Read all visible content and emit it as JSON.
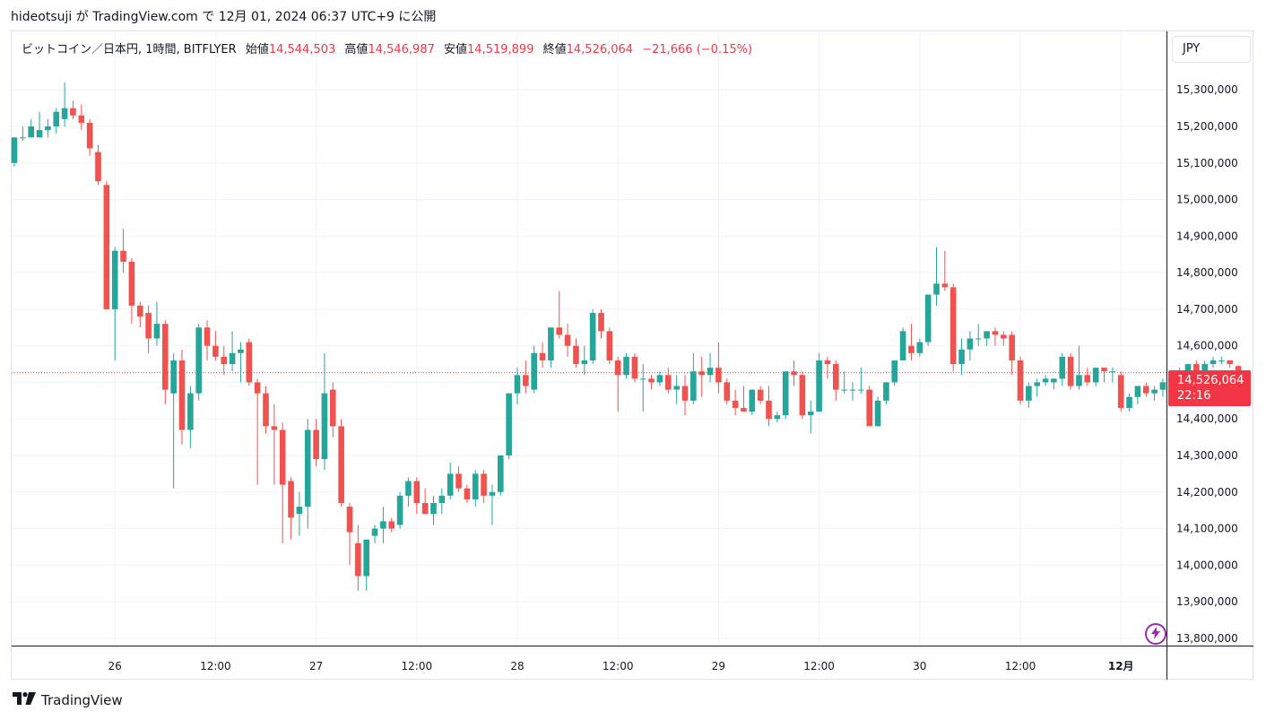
{
  "caption": "hideotsuji が TradingView.com で 12月 01, 2024 06:37 UTC+9 に公開",
  "legend": {
    "symbol": "ビットコイン／日本円, 1時間, BITFLYER",
    "open_label": "始値",
    "open": "14,544,503",
    "high_label": "高値",
    "high": "14,546,987",
    "low_label": "安値",
    "low": "14,519,899",
    "close_label": "終値",
    "close": "14,526,064",
    "change": "−21,666 (−0.15%)"
  },
  "currency": "JPY",
  "last_price": {
    "price": "14,526,064",
    "countdown": "22:16"
  },
  "footer_brand": "TradingView",
  "colors": {
    "up": "#26a69a",
    "down": "#ef5350",
    "grid": "#f0f3fa",
    "last_line": "#f23645",
    "bolt": "#9c27b0"
  },
  "icons": {
    "bolt": "lightning-bolt-icon",
    "logo": "tradingview-logo-icon"
  },
  "chart_data": {
    "type": "candlestick",
    "interval": "1時間",
    "y_ticks": [
      13800000,
      13900000,
      14000000,
      14100000,
      14200000,
      14300000,
      14400000,
      14500000,
      14600000,
      14700000,
      14800000,
      14900000,
      15000000,
      15100000,
      15200000,
      15300000
    ],
    "y_tick_labels": [
      "13,800,000",
      "13,900,000",
      "14,000,000",
      "14,100,000",
      "14,200,000",
      "14,300,000",
      "14,400,000",
      "14,500,000",
      "14,600,000",
      "14,700,000",
      "14,800,000",
      "14,900,000",
      "15,000,000",
      "15,100,000",
      "15,200,000",
      "15,300,000"
    ],
    "ylim": [
      13780000,
      15460000
    ],
    "x_labels": [
      {
        "label": "26",
        "index": 12
      },
      {
        "label": "12:00",
        "index": 24
      },
      {
        "label": "27",
        "index": 36
      },
      {
        "label": "12:00",
        "index": 48
      },
      {
        "label": "28",
        "index": 60
      },
      {
        "label": "12:00",
        "index": 72
      },
      {
        "label": "29",
        "index": 84
      },
      {
        "label": "12:00",
        "index": 96
      },
      {
        "label": "30",
        "index": 108
      },
      {
        "label": "12:00",
        "index": 120
      },
      {
        "label": "12月",
        "index": 132
      }
    ],
    "grid": true,
    "candles": [
      [
        15100000,
        15170000,
        15090000,
        15170000
      ],
      [
        15170000,
        15200000,
        15160000,
        15170000
      ],
      [
        15170000,
        15220000,
        15170000,
        15200000
      ],
      [
        15170000,
        15240000,
        15170000,
        15190000
      ],
      [
        15190000,
        15220000,
        15170000,
        15200000
      ],
      [
        15200000,
        15250000,
        15180000,
        15240000
      ],
      [
        15220000,
        15320000,
        15200000,
        15250000
      ],
      [
        15250000,
        15270000,
        15220000,
        15230000
      ],
      [
        15230000,
        15260000,
        15190000,
        15210000
      ],
      [
        15210000,
        15220000,
        15120000,
        15140000
      ],
      [
        15130000,
        15150000,
        15040000,
        15050000
      ],
      [
        15040000,
        15050000,
        14700000,
        14700000
      ],
      [
        14700000,
        14870000,
        14560000,
        14860000
      ],
      [
        14860000,
        14920000,
        14800000,
        14830000
      ],
      [
        14830000,
        14840000,
        14660000,
        14710000
      ],
      [
        14710000,
        14720000,
        14650000,
        14680000
      ],
      [
        14690000,
        14710000,
        14580000,
        14620000
      ],
      [
        14620000,
        14720000,
        14600000,
        14660000
      ],
      [
        14660000,
        14670000,
        14440000,
        14480000
      ],
      [
        14470000,
        14580000,
        14210000,
        14560000
      ],
      [
        14560000,
        14590000,
        14330000,
        14370000
      ],
      [
        14370000,
        14490000,
        14320000,
        14470000
      ],
      [
        14470000,
        14660000,
        14450000,
        14650000
      ],
      [
        14650000,
        14670000,
        14560000,
        14600000
      ],
      [
        14600000,
        14640000,
        14560000,
        14570000
      ],
      [
        14570000,
        14600000,
        14520000,
        14550000
      ],
      [
        14550000,
        14640000,
        14530000,
        14580000
      ],
      [
        14580000,
        14610000,
        14500000,
        14590000
      ],
      [
        14610000,
        14620000,
        14490000,
        14500000
      ],
      [
        14500000,
        14510000,
        14220000,
        14470000
      ],
      [
        14470000,
        14490000,
        14360000,
        14380000
      ],
      [
        14380000,
        14440000,
        14220000,
        14370000
      ],
      [
        14370000,
        14390000,
        14060000,
        14220000
      ],
      [
        14230000,
        14240000,
        14070000,
        14130000
      ],
      [
        14140000,
        14200000,
        14080000,
        14160000
      ],
      [
        14160000,
        14400000,
        14100000,
        14370000
      ],
      [
        14370000,
        14400000,
        14270000,
        14290000
      ],
      [
        14290000,
        14580000,
        14260000,
        14470000
      ],
      [
        14480000,
        14500000,
        14350000,
        14380000
      ],
      [
        14380000,
        14400000,
        14160000,
        14170000
      ],
      [
        14160000,
        14170000,
        14000000,
        14090000
      ],
      [
        14060000,
        14110000,
        13930000,
        13970000
      ],
      [
        13970000,
        14070000,
        13930000,
        14070000
      ],
      [
        14080000,
        14110000,
        14060000,
        14100000
      ],
      [
        14100000,
        14160000,
        14060000,
        14120000
      ],
      [
        14120000,
        14130000,
        14090000,
        14100000
      ],
      [
        14110000,
        14200000,
        14100000,
        14190000
      ],
      [
        14190000,
        14240000,
        14160000,
        14230000
      ],
      [
        14230000,
        14240000,
        14140000,
        14170000
      ],
      [
        14170000,
        14210000,
        14140000,
        14140000
      ],
      [
        14140000,
        14190000,
        14110000,
        14170000
      ],
      [
        14170000,
        14210000,
        14140000,
        14190000
      ],
      [
        14190000,
        14280000,
        14180000,
        14250000
      ],
      [
        14250000,
        14270000,
        14200000,
        14210000
      ],
      [
        14210000,
        14220000,
        14170000,
        14180000
      ],
      [
        14180000,
        14260000,
        14160000,
        14250000
      ],
      [
        14250000,
        14260000,
        14170000,
        14190000
      ],
      [
        14190000,
        14220000,
        14110000,
        14200000
      ],
      [
        14200000,
        14300000,
        14190000,
        14300000
      ],
      [
        14300000,
        14470000,
        14290000,
        14470000
      ],
      [
        14470000,
        14540000,
        14440000,
        14520000
      ],
      [
        14520000,
        14560000,
        14470000,
        14490000
      ],
      [
        14480000,
        14600000,
        14470000,
        14580000
      ],
      [
        14580000,
        14610000,
        14540000,
        14560000
      ],
      [
        14560000,
        14650000,
        14540000,
        14650000
      ],
      [
        14650000,
        14750000,
        14620000,
        14630000
      ],
      [
        14630000,
        14660000,
        14570000,
        14600000
      ],
      [
        14600000,
        14620000,
        14540000,
        14550000
      ],
      [
        14550000,
        14600000,
        14520000,
        14560000
      ],
      [
        14560000,
        14700000,
        14550000,
        14690000
      ],
      [
        14690000,
        14700000,
        14620000,
        14640000
      ],
      [
        14640000,
        14650000,
        14550000,
        14560000
      ],
      [
        14560000,
        14570000,
        14420000,
        14520000
      ],
      [
        14520000,
        14580000,
        14510000,
        14570000
      ],
      [
        14570000,
        14580000,
        14500000,
        14510000
      ],
      [
        14510000,
        14550000,
        14420000,
        14510000
      ],
      [
        14510000,
        14520000,
        14480000,
        14500000
      ],
      [
        14500000,
        14530000,
        14490000,
        14520000
      ],
      [
        14520000,
        14540000,
        14470000,
        14480000
      ],
      [
        14480000,
        14520000,
        14440000,
        14490000
      ],
      [
        14490000,
        14520000,
        14410000,
        14450000
      ],
      [
        14450000,
        14580000,
        14440000,
        14530000
      ],
      [
        14530000,
        14570000,
        14460000,
        14520000
      ],
      [
        14520000,
        14580000,
        14500000,
        14540000
      ],
      [
        14540000,
        14610000,
        14470000,
        14500000
      ],
      [
        14500000,
        14510000,
        14440000,
        14450000
      ],
      [
        14450000,
        14480000,
        14410000,
        14430000
      ],
      [
        14430000,
        14490000,
        14420000,
        14420000
      ],
      [
        14420000,
        14480000,
        14410000,
        14480000
      ],
      [
        14480000,
        14490000,
        14440000,
        14450000
      ],
      [
        14450000,
        14490000,
        14380000,
        14400000
      ],
      [
        14400000,
        14420000,
        14390000,
        14410000
      ],
      [
        14410000,
        14530000,
        14400000,
        14530000
      ],
      [
        14530000,
        14560000,
        14490000,
        14520000
      ],
      [
        14520000,
        14530000,
        14400000,
        14410000
      ],
      [
        14410000,
        14450000,
        14360000,
        14420000
      ],
      [
        14420000,
        14580000,
        14420000,
        14560000
      ],
      [
        14560000,
        14570000,
        14510000,
        14550000
      ],
      [
        14550000,
        14560000,
        14450000,
        14480000
      ],
      [
        14480000,
        14530000,
        14470000,
        14480000
      ],
      [
        14480000,
        14500000,
        14450000,
        14480000
      ],
      [
        14480000,
        14540000,
        14470000,
        14480000
      ],
      [
        14480000,
        14490000,
        14380000,
        14380000
      ],
      [
        14380000,
        14460000,
        14380000,
        14450000
      ],
      [
        14450000,
        14500000,
        14440000,
        14500000
      ],
      [
        14500000,
        14560000,
        14490000,
        14560000
      ],
      [
        14560000,
        14650000,
        14560000,
        14640000
      ],
      [
        14600000,
        14660000,
        14560000,
        14580000
      ],
      [
        14580000,
        14620000,
        14570000,
        14610000
      ],
      [
        14610000,
        14740000,
        14600000,
        14740000
      ],
      [
        14740000,
        14870000,
        14710000,
        14770000
      ],
      [
        14770000,
        14860000,
        14750000,
        14760000
      ],
      [
        14760000,
        14770000,
        14530000,
        14550000
      ],
      [
        14550000,
        14620000,
        14520000,
        14590000
      ],
      [
        14590000,
        14640000,
        14560000,
        14620000
      ],
      [
        14620000,
        14660000,
        14600000,
        14620000
      ],
      [
        14620000,
        14640000,
        14600000,
        14640000
      ],
      [
        14640000,
        14650000,
        14600000,
        14630000
      ],
      [
        14630000,
        14640000,
        14600000,
        14620000
      ],
      [
        14630000,
        14640000,
        14520000,
        14560000
      ],
      [
        14560000,
        14570000,
        14440000,
        14450000
      ],
      [
        14450000,
        14500000,
        14430000,
        14490000
      ],
      [
        14490000,
        14510000,
        14460000,
        14500000
      ],
      [
        14500000,
        14520000,
        14490000,
        14510000
      ],
      [
        14500000,
        14510000,
        14480000,
        14510000
      ],
      [
        14510000,
        14580000,
        14490000,
        14570000
      ],
      [
        14570000,
        14580000,
        14480000,
        14490000
      ],
      [
        14490000,
        14600000,
        14480000,
        14520000
      ],
      [
        14520000,
        14540000,
        14490000,
        14500000
      ],
      [
        14500000,
        14540000,
        14490000,
        14540000
      ],
      [
        14540000,
        14540000,
        14500000,
        14530000
      ],
      [
        14530000,
        14540000,
        14500000,
        14530000
      ],
      [
        14520000,
        14530000,
        14420000,
        14430000
      ],
      [
        14430000,
        14470000,
        14420000,
        14460000
      ],
      [
        14460000,
        14490000,
        14440000,
        14490000
      ],
      [
        14490000,
        14500000,
        14460000,
        14470000
      ],
      [
        14470000,
        14490000,
        14450000,
        14480000
      ],
      [
        14480000,
        14510000,
        14460000,
        14500000
      ],
      [
        14500000,
        14520000,
        14470000,
        14490000
      ],
      [
        14490000,
        14540000,
        14480000,
        14520000
      ],
      [
        14520000,
        14550000,
        14520000,
        14550000
      ],
      [
        14550000,
        14560000,
        14520000,
        14530000
      ],
      [
        14530000,
        14560000,
        14520000,
        14550000
      ],
      [
        14550000,
        14570000,
        14540000,
        14560000
      ],
      [
        14560000,
        14570000,
        14550000,
        14560000
      ],
      [
        14560000,
        14560000,
        14540000,
        14550000
      ],
      [
        14544503,
        14546987,
        14519899,
        14526064
      ]
    ]
  }
}
